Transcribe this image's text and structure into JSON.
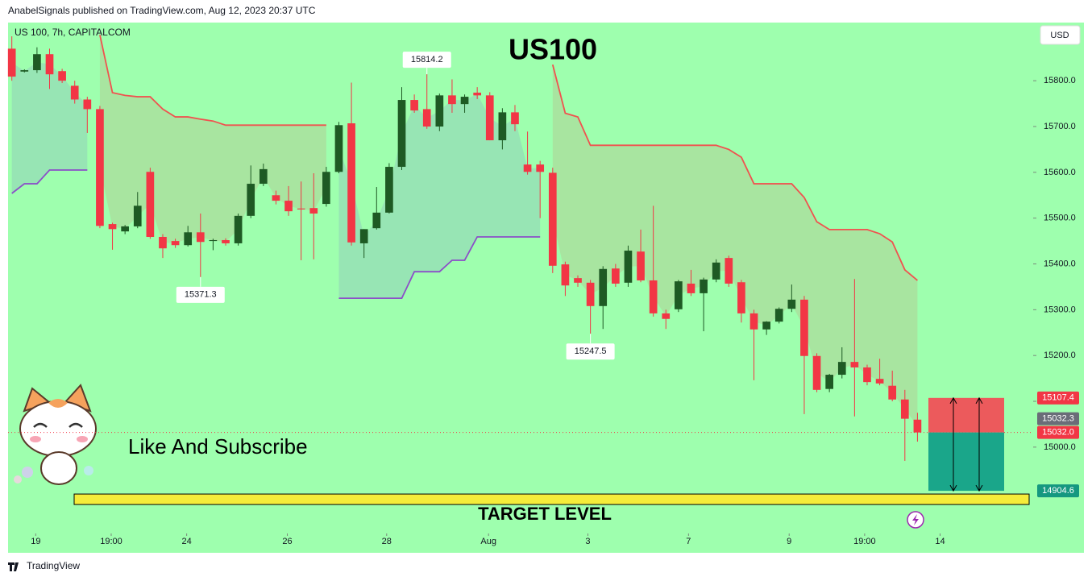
{
  "header": {
    "publisher": "AnabelSignals published on TradingView.com, Aug 12, 2023 20:37 UTC",
    "symbol": "US 100, 7h, CAPITALCOM",
    "currency": "USD",
    "footer": "TradingView"
  },
  "chart_data": {
    "type": "candlestick",
    "title": "US100",
    "subtitle": "Like And Subscribe",
    "target_text": "TARGET LEVEL",
    "up_color": "#1e5a24",
    "down_color": "#f23645",
    "ohlc": [
      [
        15870,
        15897,
        15800,
        15809
      ],
      [
        15820,
        15825,
        15818,
        15823
      ],
      [
        15823,
        15873,
        15817,
        15858
      ],
      [
        15858,
        15870,
        15782,
        15814
      ],
      [
        15821,
        15826,
        15795,
        15800
      ],
      [
        15789,
        15800,
        15750,
        15759
      ],
      [
        15759,
        15765,
        15686,
        15738
      ],
      [
        15738,
        15745,
        15478,
        15483
      ],
      [
        15487,
        15490,
        15431,
        15476
      ],
      [
        15471,
        15485,
        15465,
        15482
      ],
      [
        15482,
        15557,
        15478,
        15527
      ],
      [
        15601,
        15610,
        15455,
        15459
      ],
      [
        15459,
        15465,
        15413,
        15434
      ],
      [
        15450,
        15455,
        15435,
        15441
      ],
      [
        15441,
        15483,
        15438,
        15469
      ],
      [
        15469,
        15510,
        15371.3,
        15448
      ],
      [
        15450,
        15455,
        15430,
        15452
      ],
      [
        15452,
        15456,
        15440,
        15445
      ],
      [
        15445,
        15510,
        15440,
        15505
      ],
      [
        15505,
        15615,
        15500,
        15575
      ],
      [
        15575,
        15619,
        15570,
        15607
      ],
      [
        15550,
        15560,
        15530,
        15538
      ],
      [
        15538,
        15570,
        15505,
        15515
      ],
      [
        15521,
        15580,
        15408,
        15519
      ],
      [
        15522,
        15598,
        15410,
        15510
      ],
      [
        15531,
        15612,
        15525,
        15601
      ],
      [
        15601,
        15710,
        15598,
        15703
      ],
      [
        15707,
        15796,
        15440,
        15447
      ],
      [
        15445,
        15476,
        15413,
        15476
      ],
      [
        15478,
        15568,
        15475,
        15512
      ],
      [
        15512,
        15620,
        15510,
        15612
      ],
      [
        15612,
        15786,
        15605,
        15758
      ],
      [
        15758,
        15770,
        15730,
        15735
      ],
      [
        15738,
        15814.2,
        15695,
        15700
      ],
      [
        15700,
        15772,
        15690,
        15768
      ],
      [
        15768,
        15803,
        15730,
        15749
      ],
      [
        15749,
        15770,
        15730,
        15765
      ],
      [
        15774,
        15786,
        15760,
        15768
      ],
      [
        15768,
        15775,
        15670,
        15670
      ],
      [
        15670,
        15740,
        15650,
        15731
      ],
      [
        15731,
        15747,
        15690,
        15705
      ],
      [
        15617,
        15689,
        15595,
        15601
      ],
      [
        15617,
        15625,
        15500,
        15601
      ],
      [
        15599,
        15610,
        15380,
        15396
      ],
      [
        15399,
        15405,
        15330,
        15353
      ],
      [
        15369,
        15375,
        15350,
        15359
      ],
      [
        15359,
        15365,
        15247.5,
        15308
      ],
      [
        15308,
        15395,
        15258,
        15389
      ],
      [
        15390,
        15400,
        15350,
        15357
      ],
      [
        15359,
        15440,
        15350,
        15429
      ],
      [
        15427,
        15475,
        15360,
        15364
      ],
      [
        15364,
        15527,
        15285,
        15292
      ],
      [
        15292,
        15300,
        15258,
        15280
      ],
      [
        15301,
        15365,
        15295,
        15362
      ],
      [
        15357,
        15387,
        15330,
        15336
      ],
      [
        15336,
        15370,
        15253,
        15366
      ],
      [
        15366,
        15410,
        15360,
        15403
      ],
      [
        15413,
        15418,
        15350,
        15357
      ],
      [
        15360,
        15365,
        15272,
        15292
      ],
      [
        15292,
        15300,
        15146,
        15257
      ],
      [
        15257,
        15275,
        15245,
        15274
      ],
      [
        15274,
        15305,
        15270,
        15302
      ],
      [
        15302,
        15355,
        15295,
        15322
      ],
      [
        15322,
        15330,
        15072,
        15199
      ],
      [
        15199,
        15205,
        15120,
        15125
      ],
      [
        15127,
        15160,
        15120,
        15158
      ],
      [
        15158,
        15218,
        15150,
        15186
      ],
      [
        15186,
        15367,
        15067,
        15174
      ],
      [
        15174,
        15180,
        15135,
        15142
      ],
      [
        15149,
        15193,
        15135,
        15139
      ],
      [
        15134,
        15167,
        15100,
        15104
      ],
      [
        15104,
        15125,
        14970,
        15062
      ],
      [
        15060,
        15075,
        15012,
        15032
      ]
    ],
    "high_label_at": [
      33
    ],
    "low_label_at": [
      15,
      46
    ],
    "series": [
      {
        "color": "#f0524f",
        "fill": "rgba(242,54,69,0.13)",
        "values": [
          null,
          null,
          null,
          null,
          null,
          null,
          null,
          15900,
          15774,
          15768,
          15765,
          15765,
          15738,
          15721,
          15721,
          15716,
          15712,
          15703,
          15703,
          15703,
          15703,
          15703,
          15703,
          15703,
          15703,
          15703,
          null,
          null,
          null,
          null,
          null,
          null,
          null,
          null,
          null,
          null,
          null,
          null,
          null,
          null,
          null,
          null,
          null,
          15835,
          15729,
          15721,
          15659,
          15659,
          15659,
          15659,
          15659,
          15659,
          15659,
          15659,
          15659,
          15659,
          15659,
          15650,
          15633,
          15575,
          15575,
          15575,
          15575,
          15545,
          15492,
          15475,
          15475,
          15475,
          15475,
          15466,
          15448,
          15387,
          15364
        ]
      },
      {
        "color": "#8b4fc8",
        "fill": "rgba(120,110,210,0.18)",
        "values": [
          15554,
          15575,
          15575,
          15605,
          15605,
          15605,
          15605,
          null,
          null,
          null,
          null,
          null,
          null,
          null,
          null,
          null,
          null,
          null,
          null,
          null,
          null,
          null,
          null,
          null,
          null,
          null,
          15325,
          15325,
          15325,
          15325,
          15325,
          15325,
          15383,
          15383,
          15383,
          15408,
          15408,
          15459,
          15459,
          15459,
          15459,
          15459,
          15459,
          null,
          null,
          null,
          null,
          null,
          null,
          null,
          null,
          null,
          null,
          null,
          null,
          null,
          null,
          null,
          null,
          null,
          null,
          null,
          null,
          null,
          null,
          null,
          null,
          null,
          null,
          null,
          null,
          null,
          null
        ]
      }
    ],
    "xlim": [
      -0.3,
      81.2
    ],
    "xticks": [
      {
        "value": 1.9,
        "label": "19"
      },
      {
        "value": 7.9,
        "label": "19:00"
      },
      {
        "value": 13.9,
        "label": "24"
      },
      {
        "value": 21.9,
        "label": "26"
      },
      {
        "value": 29.8,
        "label": "28"
      },
      {
        "value": 37.9,
        "label": "Aug"
      },
      {
        "value": 45.8,
        "label": "3"
      },
      {
        "value": 53.8,
        "label": "7"
      },
      {
        "value": 61.8,
        "label": "9"
      },
      {
        "value": 67.8,
        "label": "19:00"
      },
      {
        "value": 73.8,
        "label": "14"
      }
    ],
    "ylim": [
      14815,
      15927
    ],
    "yticks": [
      {
        "value": 15000,
        "label": "15000.0"
      },
      {
        "value": 15100,
        "label": "15100.0"
      },
      {
        "value": 15200,
        "label": "15200.0"
      },
      {
        "value": 15300,
        "label": "15300.0"
      },
      {
        "value": 15400,
        "label": "15400.0"
      },
      {
        "value": 15500,
        "label": "15500.0"
      },
      {
        "value": 15600,
        "label": "15600.0"
      },
      {
        "value": 15700,
        "label": "15700.0"
      },
      {
        "value": 15800,
        "label": "15800.0"
      }
    ],
    "price_badges": [
      {
        "value": 15107.4,
        "label": "15107.4",
        "color": "#f23645"
      },
      {
        "value": 15032.3,
        "label": "15032.3",
        "color": "#6a6d78"
      },
      {
        "value": 15032,
        "label": "15032.0",
        "color": "#f23645"
      },
      {
        "value": 14904.6,
        "label": "14904.6",
        "color": "#159880"
      }
    ],
    "position": {
      "stop": 15107.4,
      "entry": 15032,
      "target": 14904.6,
      "stop_color": "#ec5a5c",
      "target_color": "#1aa68a"
    }
  }
}
